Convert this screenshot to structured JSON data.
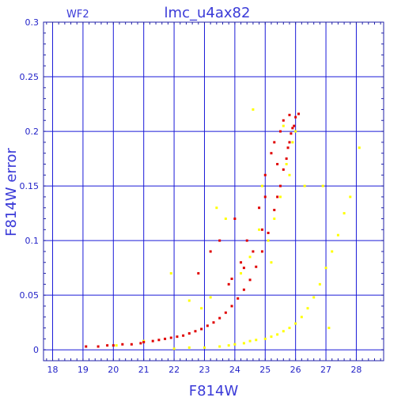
{
  "chart_data": {
    "type": "scatter",
    "title": "lmc_u4ax82",
    "subtitle": "WF2",
    "xlabel": "F814W",
    "ylabel": "F814W error",
    "xlim": [
      17.7,
      28.9
    ],
    "ylim": [
      -0.01,
      0.3
    ],
    "x_ticks": [
      "18",
      "19",
      "20",
      "21",
      "22",
      "23",
      "24",
      "25",
      "26",
      "27",
      "28"
    ],
    "y_ticks": [
      "0",
      "0.05",
      "0.1",
      "0.15",
      "0.2",
      "0.25",
      "0.3"
    ],
    "grid": true,
    "colors": {
      "frame": "#2020a8",
      "grid": "#1a1ad8",
      "text": "#2323c8",
      "red": "#e00000",
      "yellow": "#ffff00"
    },
    "series": [
      {
        "color": "#e00000",
        "points": [
          [
            19.1,
            0.003
          ],
          [
            19.5,
            0.003
          ],
          [
            19.8,
            0.004
          ],
          [
            20.0,
            0.004
          ],
          [
            20.3,
            0.005
          ],
          [
            20.6,
            0.005
          ],
          [
            20.9,
            0.006
          ],
          [
            21.0,
            0.007
          ],
          [
            21.3,
            0.008
          ],
          [
            21.5,
            0.009
          ],
          [
            21.7,
            0.01
          ],
          [
            21.9,
            0.011
          ],
          [
            22.1,
            0.012
          ],
          [
            22.3,
            0.013
          ],
          [
            22.5,
            0.015
          ],
          [
            22.7,
            0.017
          ],
          [
            22.9,
            0.019
          ],
          [
            23.1,
            0.022
          ],
          [
            23.3,
            0.025
          ],
          [
            23.5,
            0.029
          ],
          [
            23.7,
            0.034
          ],
          [
            23.9,
            0.04
          ],
          [
            24.1,
            0.047
          ],
          [
            24.3,
            0.055
          ],
          [
            24.5,
            0.064
          ],
          [
            24.7,
            0.076
          ],
          [
            24.9,
            0.09
          ],
          [
            25.1,
            0.107
          ],
          [
            25.3,
            0.128
          ],
          [
            25.5,
            0.15
          ],
          [
            25.7,
            0.175
          ],
          [
            25.8,
            0.19
          ],
          [
            25.9,
            0.203
          ],
          [
            26.0,
            0.213
          ],
          [
            26.1,
            0.216
          ],
          [
            25.95,
            0.205
          ],
          [
            25.85,
            0.198
          ],
          [
            25.75,
            0.185
          ],
          [
            25.6,
            0.165
          ],
          [
            25.4,
            0.14
          ],
          [
            25.0,
            0.16
          ],
          [
            25.3,
            0.19
          ],
          [
            25.5,
            0.2
          ],
          [
            24.9,
            0.11
          ],
          [
            24.6,
            0.09
          ],
          [
            24.8,
            0.13
          ],
          [
            24.2,
            0.08
          ],
          [
            23.8,
            0.06
          ],
          [
            23.5,
            0.1
          ],
          [
            23.2,
            0.09
          ],
          [
            22.8,
            0.07
          ],
          [
            24.0,
            0.12
          ],
          [
            24.4,
            0.1
          ],
          [
            25.2,
            0.18
          ],
          [
            25.6,
            0.21
          ],
          [
            25.8,
            0.215
          ],
          [
            23.9,
            0.065
          ],
          [
            24.3,
            0.075
          ],
          [
            25.0,
            0.14
          ],
          [
            25.4,
            0.17
          ]
        ]
      },
      {
        "color": "#ffff00",
        "points": [
          [
            22.0,
            0.001
          ],
          [
            22.5,
            0.002
          ],
          [
            23.0,
            0.002
          ],
          [
            23.5,
            0.003
          ],
          [
            23.8,
            0.004
          ],
          [
            24.0,
            0.005
          ],
          [
            24.3,
            0.006
          ],
          [
            24.5,
            0.008
          ],
          [
            24.7,
            0.009
          ],
          [
            25.0,
            0.01
          ],
          [
            25.2,
            0.012
          ],
          [
            25.4,
            0.014
          ],
          [
            25.6,
            0.017
          ],
          [
            25.8,
            0.02
          ],
          [
            26.0,
            0.024
          ],
          [
            26.2,
            0.03
          ],
          [
            26.4,
            0.038
          ],
          [
            26.6,
            0.048
          ],
          [
            26.8,
            0.06
          ],
          [
            27.0,
            0.075
          ],
          [
            27.2,
            0.09
          ],
          [
            27.4,
            0.105
          ],
          [
            27.6,
            0.125
          ],
          [
            27.8,
            0.14
          ],
          [
            28.1,
            0.185
          ],
          [
            25.5,
            0.14
          ],
          [
            25.7,
            0.17
          ],
          [
            25.9,
            0.19
          ],
          [
            26.0,
            0.2
          ],
          [
            25.8,
            0.16
          ],
          [
            25.3,
            0.12
          ],
          [
            25.1,
            0.1
          ],
          [
            24.8,
            0.11
          ],
          [
            24.5,
            0.085
          ],
          [
            24.2,
            0.07
          ],
          [
            23.7,
            0.12
          ],
          [
            23.4,
            0.13
          ],
          [
            22.5,
            0.045
          ],
          [
            22.9,
            0.038
          ],
          [
            23.2,
            0.048
          ],
          [
            21.9,
            0.07
          ],
          [
            20.1,
            0.004
          ],
          [
            21.0,
            0.008
          ],
          [
            24.9,
            0.15
          ],
          [
            25.6,
            0.205
          ],
          [
            24.6,
            0.22
          ],
          [
            25.2,
            0.08
          ],
          [
            26.3,
            0.15
          ],
          [
            27.1,
            0.02
          ],
          [
            26.9,
            0.15
          ]
        ]
      }
    ]
  }
}
